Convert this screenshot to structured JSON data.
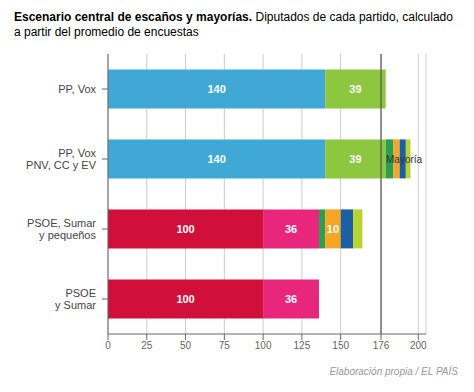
{
  "chart_data": {
    "type": "bar",
    "orientation": "horizontal",
    "stacked": true,
    "title": "Escenario central de escaños y mayorías.",
    "subtitle": "Diputados de cada partido, calculado a partir del promedio de encuestas",
    "categories": [
      "PP, Vox",
      "PP, Vox\nPNV, CC y EV",
      "PSOE, Sumar\ny pequeños",
      "PSOE\ny Sumar"
    ],
    "series": [
      {
        "values": [
          140,
          140,
          100,
          100
        ],
        "colors": [
          "#3fa8d5",
          "#3fa8d5",
          "#d0103a",
          "#d0103a"
        ],
        "value_labels": [
          "140",
          "140",
          "100",
          "100"
        ]
      },
      {
        "values": [
          39,
          39,
          36,
          36
        ],
        "colors": [
          "#8dc63f",
          "#8dc63f",
          "#e8267c",
          "#e8267c"
        ],
        "value_labels": [
          "39",
          "39",
          "36",
          "36"
        ]
      },
      {
        "values": [
          null,
          5,
          4,
          null
        ],
        "color": "#2d9e4e",
        "value_labels": [
          null,
          null,
          null,
          null
        ]
      },
      {
        "values": [
          null,
          4,
          10,
          null
        ],
        "color": "#f5a623",
        "value_labels": [
          null,
          null,
          "10",
          null
        ]
      },
      {
        "values": [
          null,
          4,
          8,
          null
        ],
        "color": "#1c5fa3",
        "value_labels": [
          null,
          null,
          null,
          null
        ]
      },
      {
        "values": [
          null,
          3,
          6,
          null
        ],
        "color": "#b8d432",
        "value_labels": [
          null,
          null,
          null,
          null
        ]
      }
    ],
    "data_labels": true,
    "xlim": [
      0,
      205
    ],
    "xticks": [
      0,
      25,
      50,
      75,
      100,
      125,
      150,
      176,
      200
    ],
    "grid": true,
    "annotations": [
      {
        "text": "Mayoría",
        "x": 176,
        "y": "PP, Vox\nPNV, CC y EV"
      },
      {
        "text": "Elaboración propia / EL PAÍS"
      }
    ]
  }
}
